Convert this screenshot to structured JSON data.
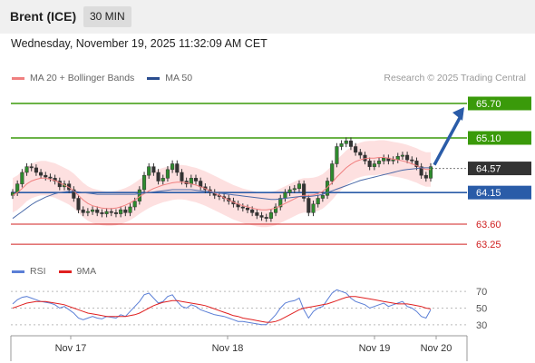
{
  "header": {
    "instrument": "Brent (ICE)",
    "interval": "30 MIN"
  },
  "datetime": "Wednesday, November 19, 2025 11:32:09 AM CET",
  "legend": {
    "items": [
      {
        "label": "MA 20 + Bollinger Bands",
        "color": "#f08080"
      },
      {
        "label": "MA 50",
        "color": "#2a4d8f"
      }
    ],
    "credit": "Research © 2025 Trading Central"
  },
  "rsi_legend": {
    "items": [
      {
        "label": "RSI",
        "color": "#5b7fd6"
      },
      {
        "label": "9MA",
        "color": "#e02020"
      }
    ]
  },
  "chart_data": [
    {
      "type": "candlestick",
      "ylim": [
        63.0,
        66.0
      ],
      "x_ticks": [
        "Nov 17",
        "Nov 18",
        "Nov 19",
        "Nov 20"
      ],
      "current_price": "64.57",
      "levels": [
        {
          "label": "65.70",
          "value": 65.7,
          "kind": "resistance",
          "color": "#3a9a0a"
        },
        {
          "label": "65.10",
          "value": 65.1,
          "kind": "resistance",
          "color": "#3a9a0a"
        },
        {
          "label": "64.57",
          "value": 64.57,
          "kind": "last",
          "color": "#333333"
        },
        {
          "label": "64.15",
          "value": 64.15,
          "kind": "pivot",
          "color": "#2a5ca8"
        },
        {
          "label": "63.60",
          "value": 63.6,
          "kind": "support",
          "color": "#d02020"
        },
        {
          "label": "63.25",
          "value": 63.25,
          "kind": "support",
          "color": "#d02020"
        }
      ],
      "close": [
        64.15,
        64.3,
        64.5,
        64.6,
        64.58,
        64.5,
        64.45,
        64.42,
        64.4,
        64.35,
        64.25,
        64.3,
        64.2,
        64.05,
        63.85,
        63.8,
        63.82,
        63.85,
        63.8,
        63.78,
        63.82,
        63.8,
        63.78,
        63.85,
        63.8,
        63.9,
        64.0,
        64.2,
        64.45,
        64.6,
        64.5,
        64.35,
        64.4,
        64.55,
        64.65,
        64.5,
        64.35,
        64.3,
        64.4,
        64.35,
        64.25,
        64.2,
        64.15,
        64.1,
        64.08,
        64.05,
        64.0,
        63.95,
        63.9,
        63.88,
        63.85,
        63.8,
        63.75,
        63.72,
        63.7,
        63.8,
        63.9,
        64.05,
        64.15,
        64.2,
        64.22,
        64.3,
        64.05,
        63.8,
        63.95,
        64.05,
        64.1,
        64.35,
        64.65,
        64.95,
        65.0,
        65.05,
        64.95,
        64.85,
        64.8,
        64.7,
        64.6,
        64.65,
        64.7,
        64.75,
        64.7,
        64.72,
        64.78,
        64.8,
        64.72,
        64.7,
        64.6,
        64.45,
        64.4,
        64.6
      ],
      "ma20": [
        64.1,
        64.15,
        64.22,
        64.3,
        64.35,
        64.38,
        64.4,
        64.4,
        64.38,
        64.36,
        64.32,
        64.28,
        64.24,
        64.18,
        64.1,
        64.02,
        63.96,
        63.92,
        63.9,
        63.88,
        63.87,
        63.87,
        63.88,
        63.9,
        63.93,
        63.97,
        64.02,
        64.08,
        64.13,
        64.18,
        64.22,
        64.25,
        64.28,
        64.3,
        64.32,
        64.33,
        64.33,
        64.32,
        64.3,
        64.28,
        64.25,
        64.22,
        64.18,
        64.14,
        64.1,
        64.06,
        64.02,
        63.98,
        63.95,
        63.92,
        63.9,
        63.88,
        63.86,
        63.85,
        63.85,
        63.86,
        63.88,
        63.92,
        63.96,
        64.0,
        64.04,
        64.08,
        64.1,
        64.1,
        64.11,
        64.13,
        64.17,
        64.24,
        64.32,
        64.42,
        64.5,
        64.58,
        64.64,
        64.69,
        64.72,
        64.74,
        64.75,
        64.75,
        64.76,
        64.76,
        64.75,
        64.73,
        64.72,
        64.7,
        64.68,
        64.65,
        64.62,
        64.58,
        64.55,
        64.55
      ],
      "ma50": [
        63.7,
        63.76,
        63.82,
        63.88,
        63.94,
        63.99,
        64.03,
        64.07,
        64.1,
        64.13,
        64.15,
        64.16,
        64.17,
        64.17,
        64.16,
        64.15,
        64.14,
        64.13,
        64.12,
        64.12,
        64.12,
        64.12,
        64.12,
        64.12,
        64.12,
        64.12,
        64.12,
        64.13,
        64.14,
        64.15,
        64.16,
        64.17,
        64.18,
        64.19,
        64.2,
        64.2,
        64.2,
        64.2,
        64.2,
        64.19,
        64.18,
        64.17,
        64.16,
        64.15,
        64.14,
        64.13,
        64.12,
        64.11,
        64.1,
        64.09,
        64.08,
        64.07,
        64.06,
        64.05,
        64.04,
        64.03,
        64.03,
        64.04,
        64.05,
        64.06,
        64.07,
        64.08,
        64.08,
        64.08,
        64.09,
        64.1,
        64.12,
        64.15,
        64.18,
        64.21,
        64.24,
        64.27,
        64.3,
        64.33,
        64.36,
        64.38,
        64.4,
        64.42,
        64.44,
        64.46,
        64.48,
        64.5,
        64.52,
        64.54,
        64.55,
        64.56,
        64.57,
        64.58,
        64.58,
        64.58
      ]
    },
    {
      "type": "line",
      "ylim": [
        20,
        80
      ],
      "y_ticks": [
        70,
        50,
        30
      ],
      "series": [
        {
          "name": "RSI",
          "color": "#5b7fd6",
          "values": [
            55,
            60,
            63,
            64,
            62,
            60,
            58,
            57,
            56,
            54,
            50,
            52,
            48,
            44,
            38,
            36,
            38,
            40,
            38,
            37,
            40,
            39,
            38,
            42,
            40,
            46,
            52,
            58,
            66,
            68,
            62,
            56,
            58,
            64,
            66,
            58,
            52,
            50,
            54,
            52,
            48,
            46,
            44,
            42,
            41,
            40,
            38,
            36,
            34,
            34,
            33,
            32,
            31,
            30,
            30,
            36,
            42,
            50,
            56,
            58,
            59,
            62,
            48,
            38,
            46,
            50,
            52,
            60,
            68,
            72,
            70,
            68,
            62,
            58,
            56,
            54,
            50,
            52,
            54,
            56,
            52,
            54,
            56,
            58,
            52,
            50,
            46,
            40,
            38,
            48
          ]
        },
        {
          "name": "9MA",
          "color": "#e02020",
          "values": [
            50,
            52,
            54,
            56,
            57,
            58,
            58,
            58,
            57,
            56,
            55,
            54,
            52,
            50,
            48,
            46,
            44,
            43,
            42,
            41,
            40,
            40,
            40,
            40,
            40,
            41,
            42,
            44,
            47,
            50,
            53,
            55,
            57,
            58,
            59,
            59,
            58,
            57,
            56,
            55,
            54,
            53,
            51,
            49,
            47,
            45,
            43,
            41,
            40,
            38,
            37,
            36,
            35,
            34,
            33,
            33,
            34,
            36,
            39,
            42,
            45,
            48,
            50,
            51,
            52,
            53,
            54,
            55,
            57,
            59,
            61,
            63,
            64,
            64,
            63,
            62,
            61,
            60,
            59,
            58,
            57,
            56,
            55,
            55,
            55,
            54,
            53,
            52,
            50,
            49
          ]
        }
      ]
    }
  ]
}
